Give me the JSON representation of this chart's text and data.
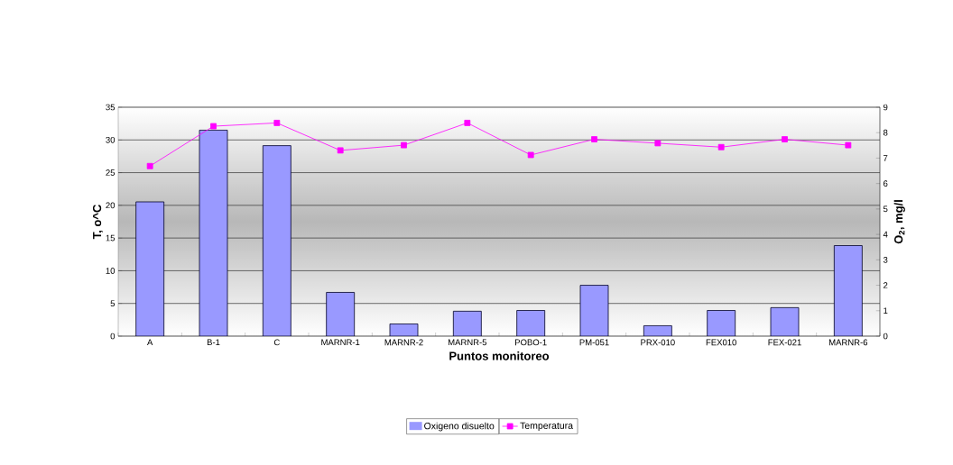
{
  "chart_data": {
    "type": "bar",
    "xlabel": "Puntos monitoreo",
    "ylabel": "T, o^C",
    "y2label": "O$_{2}$, mg/l",
    "categories": [
      "A",
      "B-1",
      "C",
      "MARNR-1",
      "MARNR-2",
      "MARNR-5",
      "POBO-1",
      "PM-051",
      "PRX-010",
      "FEX010",
      "FEX-021",
      "MARNR-6"
    ],
    "series": [
      {
        "name": "Oxigeno disuelto",
        "axis": "y2",
        "color": "#9999ff",
        "values": [
          5.28,
          8.1,
          7.49,
          1.72,
          0.48,
          0.98,
          1.01,
          2.0,
          0.41,
          1.01,
          1.12,
          3.56
        ]
      },
      {
        "name": "Temperatura",
        "type": "line",
        "axis": "y",
        "color": "#ff00ff",
        "values": [
          26.0,
          32.1,
          32.6,
          28.4,
          29.2,
          32.6,
          27.7,
          30.1,
          29.5,
          28.9,
          30.1,
          29.2
        ]
      }
    ],
    "ylim": [
      0,
      35
    ],
    "yticks": [
      0,
      5,
      10,
      15,
      20,
      25,
      30,
      35
    ],
    "y2lim": [
      0,
      9
    ],
    "y2ticks": [
      0,
      1,
      2,
      3,
      4,
      5,
      6,
      7,
      8,
      9
    ],
    "grid": "y",
    "legend": "bottom",
    "marker": "square"
  }
}
